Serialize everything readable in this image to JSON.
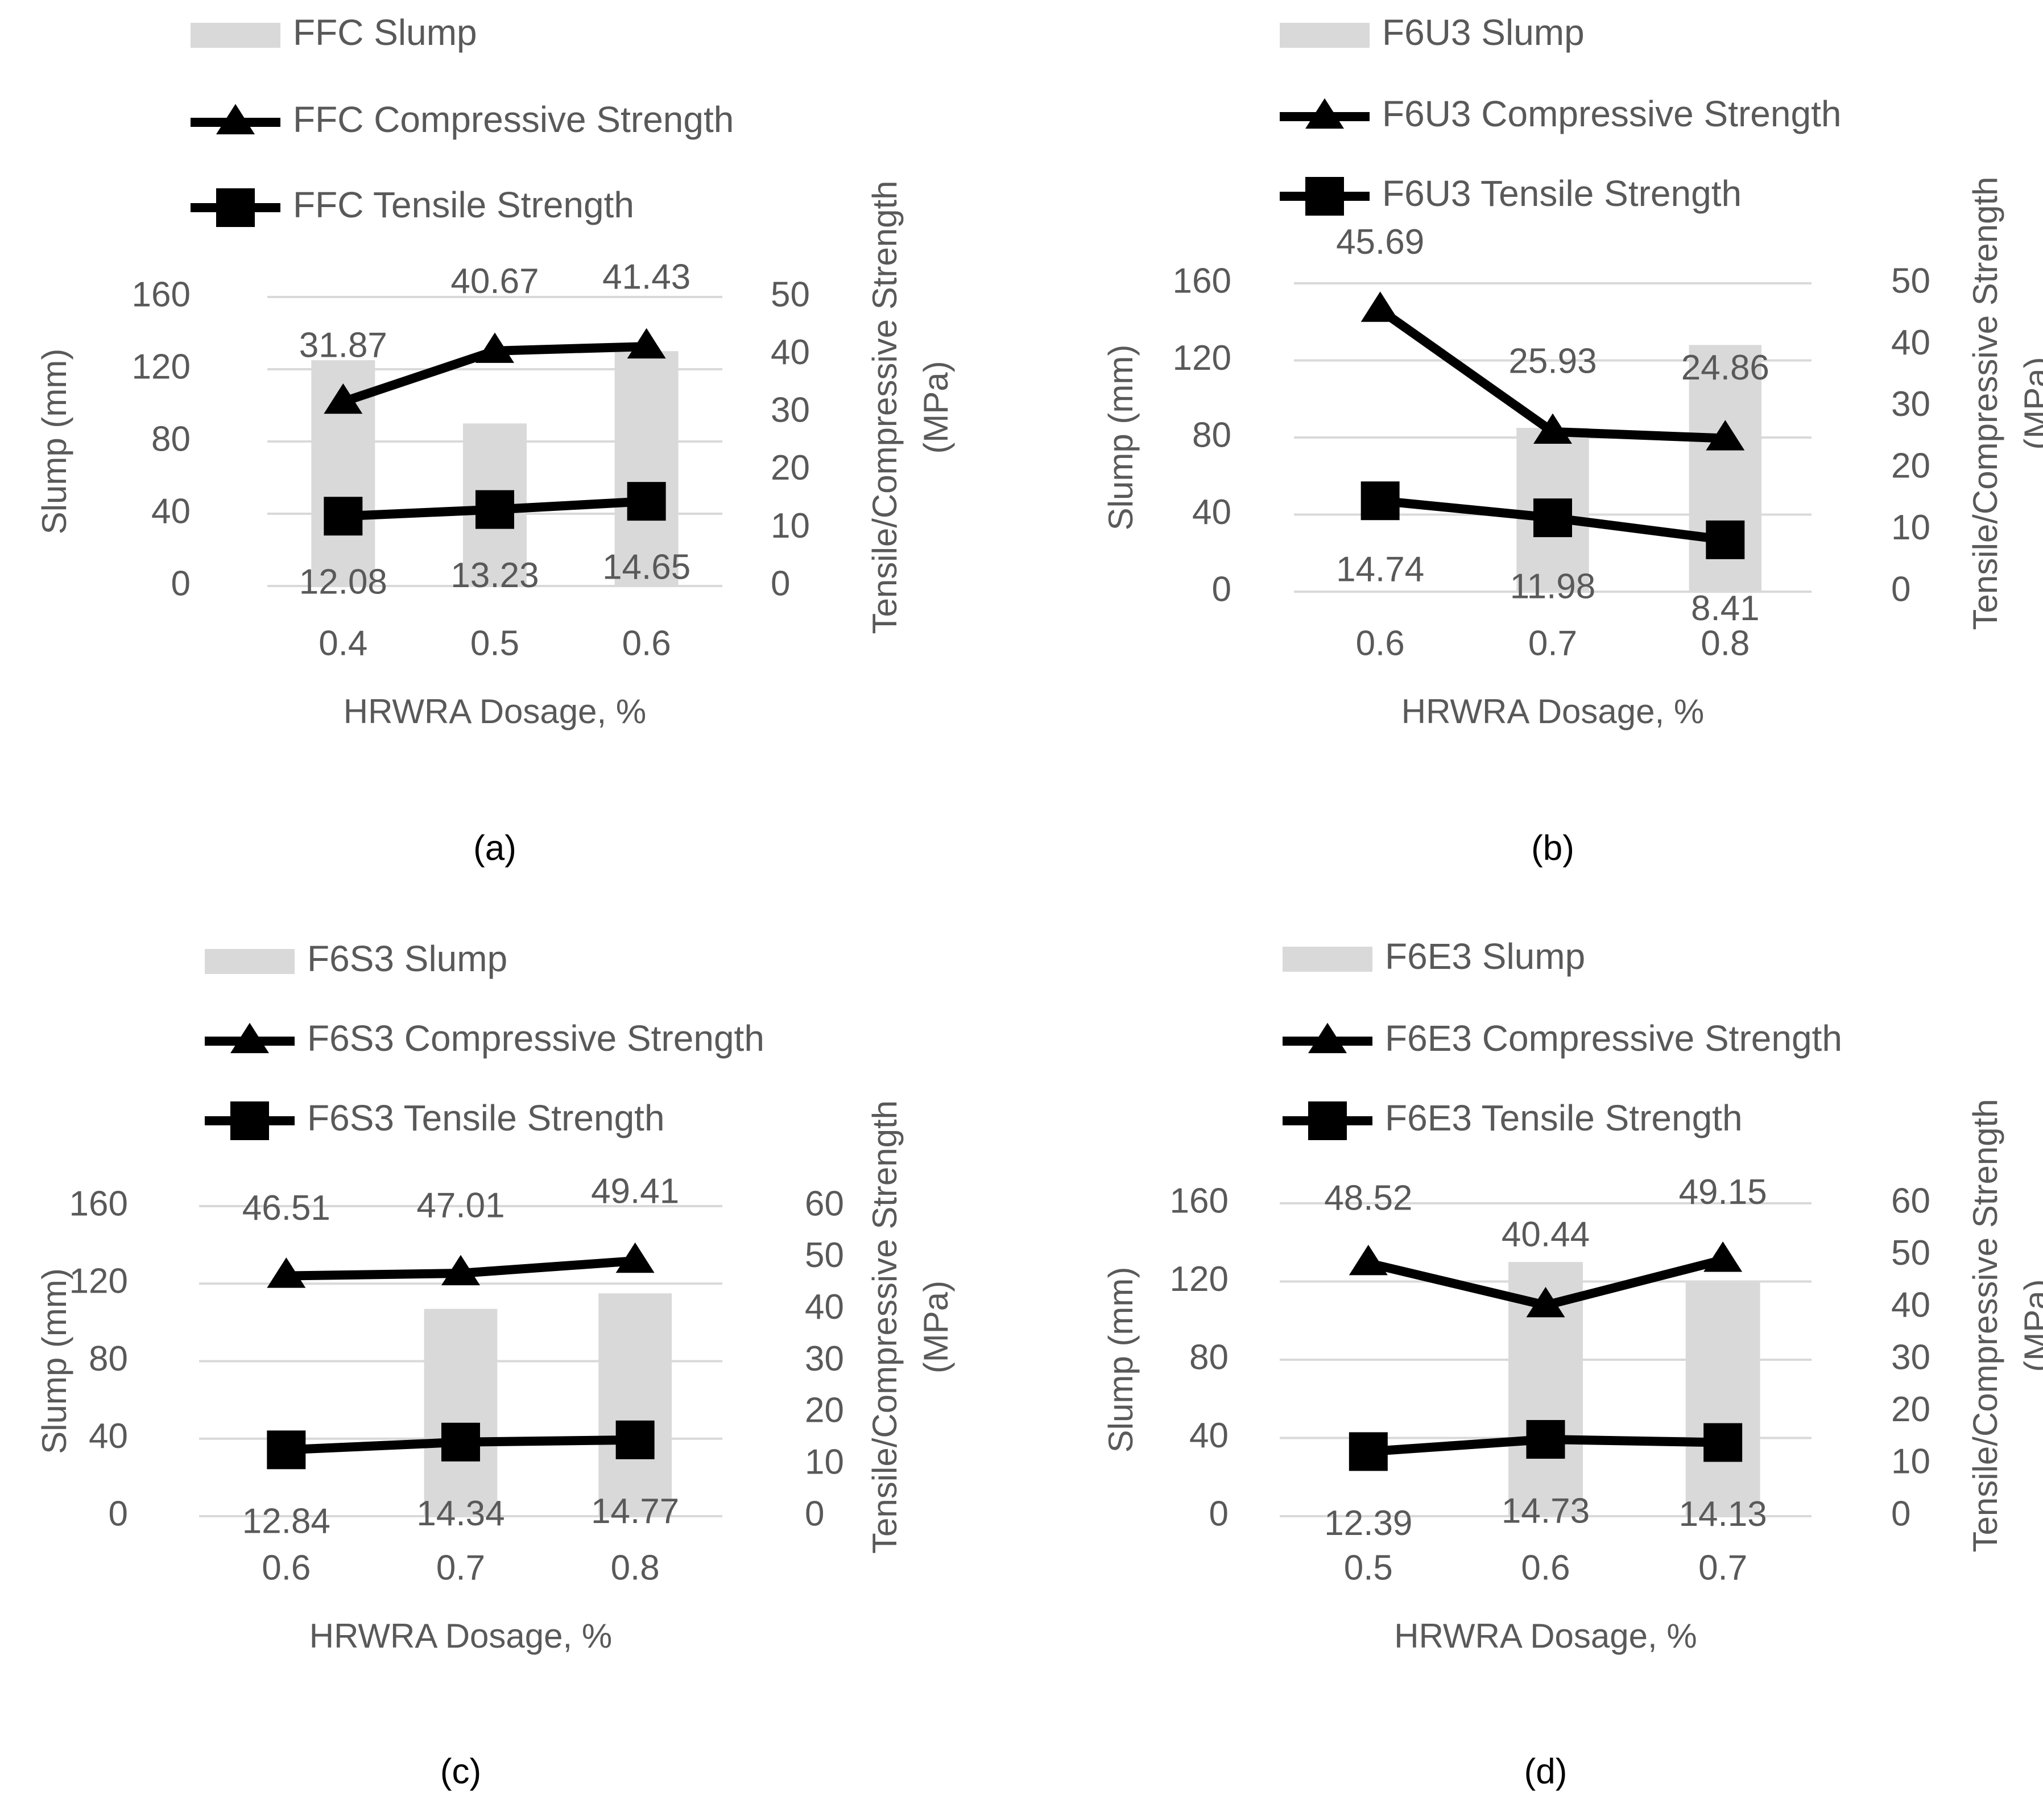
{
  "figure": {
    "colors": {
      "bar": "#d9d9d9",
      "line": "#000000",
      "axis_text": "#595959",
      "grid": "#d9d9d9",
      "caption": "#000000"
    },
    "panels": [
      {
        "caption": "(a)",
        "caption_letter": "a",
        "legend": {
          "slump": "FFC Slump",
          "compressive": "FFC Compressive Strength",
          "tensile": "FFC Tensile Strength"
        },
        "xlabel": "HRWRA Dosage, %",
        "ylabel_left": "Slump (mm)",
        "ylabel_right_line1": "Tensile/Compressive Strength",
        "ylabel_right_line2": "(MPa)"
      },
      {
        "caption": "(b)",
        "caption_letter": "b",
        "legend": {
          "slump": "F6U3 Slump",
          "compressive": "F6U3 Compressive Strength",
          "tensile": "F6U3 Tensile Strength"
        },
        "xlabel": "HRWRA Dosage, %",
        "ylabel_left": "Slump (mm)",
        "ylabel_right_line1": "Tensile/Compressive Strength",
        "ylabel_right_line2": "(MPa)"
      },
      {
        "caption": "(c)",
        "caption_letter": "c",
        "legend": {
          "slump": "F6S3 Slump",
          "compressive": "F6S3 Compressive Strength",
          "tensile": "F6S3 Tensile Strength"
        },
        "xlabel": "HRWRA Dosage, %",
        "ylabel_left": "Slump (mm)",
        "ylabel_right_line1": "Tensile/Compressive Strength",
        "ylabel_right_line2": "(MPa)"
      },
      {
        "caption": "(d)",
        "caption_letter": "d",
        "legend": {
          "slump": "F6E3 Slump",
          "compressive": "F6E3 Compressive Strength",
          "tensile": "F6E3 Tensile Strength"
        },
        "xlabel": "HRWRA Dosage, %",
        "ylabel_left": "Slump (mm)",
        "ylabel_right_line1": "Tensile/Compressive Strength",
        "ylabel_right_line2": "(MPa)"
      }
    ]
  },
  "chart_data": [
    {
      "type": "bar+line",
      "panel": "(a)",
      "categories": [
        "0.4",
        "0.5",
        "0.6"
      ],
      "xlabel": "HRWRA Dosage, %",
      "ylabel_left": "Slump (mm)",
      "ylabel_right": "Tensile/Compressive Strength (MPa)",
      "ylim_left": [
        0,
        160
      ],
      "yticks_left": [
        "0",
        "40",
        "80",
        "120",
        "160"
      ],
      "ylim_right": [
        0,
        50
      ],
      "yticks_right": [
        "0",
        "10",
        "20",
        "30",
        "40",
        "50"
      ],
      "grid": true,
      "series": [
        {
          "name": "FFC Slump",
          "kind": "bar",
          "axis": "left",
          "values": [
            125,
            90,
            130
          ]
        },
        {
          "name": "FFC Compressive Strength",
          "kind": "line",
          "marker": "triangle",
          "axis": "right",
          "values": [
            31.87,
            40.67,
            41.43
          ],
          "labels": [
            "31.87",
            "40.67",
            "41.43"
          ]
        },
        {
          "name": "FFC Tensile Strength",
          "kind": "line",
          "marker": "square",
          "axis": "right",
          "values": [
            12.08,
            13.23,
            14.65
          ],
          "labels": [
            "12.08",
            "13.23",
            "14.65"
          ]
        }
      ]
    },
    {
      "type": "bar+line",
      "panel": "(b)",
      "categories": [
        "0.6",
        "0.7",
        "0.8"
      ],
      "xlabel": "HRWRA Dosage, %",
      "ylabel_left": "Slump (mm)",
      "ylabel_right": "Tensile/Compressive Strength (MPa)",
      "ylim_left": [
        0,
        160
      ],
      "yticks_left": [
        "0",
        "40",
        "80",
        "120",
        "160"
      ],
      "ylim_right": [
        0,
        50
      ],
      "yticks_right": [
        "0",
        "10",
        "20",
        "30",
        "40",
        "50"
      ],
      "grid": true,
      "series": [
        {
          "name": "F6U3 Slump",
          "kind": "bar",
          "axis": "left",
          "values": [
            0,
            85,
            128
          ]
        },
        {
          "name": "F6U3 Compressive Strength",
          "kind": "line",
          "marker": "triangle",
          "axis": "right",
          "values": [
            45.69,
            25.93,
            24.86
          ],
          "labels": [
            "45.69",
            "25.93",
            "24.86"
          ]
        },
        {
          "name": "F6U3 Tensile Strength",
          "kind": "line",
          "marker": "square",
          "axis": "right",
          "values": [
            14.74,
            11.98,
            8.41
          ],
          "labels": [
            "14.74",
            "11.98",
            "8.41"
          ]
        }
      ]
    },
    {
      "type": "bar+line",
      "panel": "(c)",
      "categories": [
        "0.6",
        "0.7",
        "0.8"
      ],
      "xlabel": "HRWRA Dosage, %",
      "ylabel_left": "Slump (mm)",
      "ylabel_right": "Tensile/Compressive Strength (MPa)",
      "ylim_left": [
        0,
        160
      ],
      "yticks_left": [
        "0",
        "40",
        "80",
        "120",
        "160"
      ],
      "ylim_right": [
        0,
        60
      ],
      "yticks_right": [
        "0",
        "10",
        "20",
        "30",
        "40",
        "50",
        "60"
      ],
      "grid": true,
      "series": [
        {
          "name": "F6S3 Slump",
          "kind": "bar",
          "axis": "left",
          "values": [
            0,
            107,
            115
          ]
        },
        {
          "name": "F6S3 Compressive Strength",
          "kind": "line",
          "marker": "triangle",
          "axis": "right",
          "values": [
            46.51,
            47.01,
            49.41
          ],
          "labels": [
            "46.51",
            "47.01",
            "49.41"
          ]
        },
        {
          "name": "F6S3 Tensile Strength",
          "kind": "line",
          "marker": "square",
          "axis": "right",
          "values": [
            12.84,
            14.34,
            14.77
          ],
          "labels": [
            "12.84",
            "14.34",
            "14.77"
          ]
        }
      ]
    },
    {
      "type": "bar+line",
      "panel": "(d)",
      "categories": [
        "0.5",
        "0.6",
        "0.7"
      ],
      "xlabel": "HRWRA Dosage, %",
      "ylabel_left": "Slump (mm)",
      "ylabel_right": "Tensile/Compressive Strength (MPa)",
      "ylim_left": [
        0,
        160
      ],
      "yticks_left": [
        "0",
        "40",
        "80",
        "120",
        "160"
      ],
      "ylim_right": [
        0,
        60
      ],
      "yticks_right": [
        "0",
        "10",
        "20",
        "30",
        "40",
        "50",
        "60"
      ],
      "grid": true,
      "series": [
        {
          "name": "F6E3 Slump",
          "kind": "bar",
          "axis": "left",
          "values": [
            0,
            130,
            120
          ]
        },
        {
          "name": "F6E3 Compressive Strength",
          "kind": "line",
          "marker": "triangle",
          "axis": "right",
          "values": [
            48.52,
            40.44,
            49.15
          ],
          "labels": [
            "48.52",
            "40.44",
            "49.15"
          ]
        },
        {
          "name": "F6E3 Tensile Strength",
          "kind": "line",
          "marker": "square",
          "axis": "right",
          "values": [
            12.39,
            14.73,
            14.13
          ],
          "labels": [
            "12.39",
            "14.73",
            "14.13"
          ]
        }
      ]
    }
  ]
}
